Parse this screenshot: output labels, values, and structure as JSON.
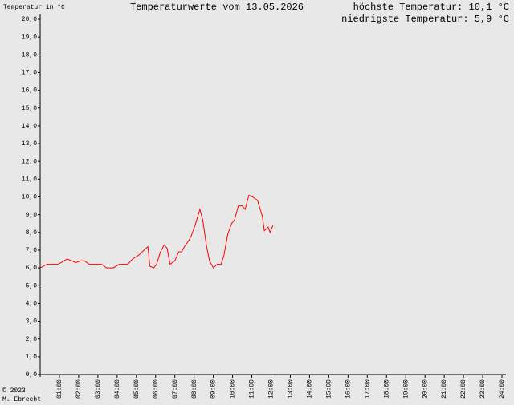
{
  "chart_data": {
    "type": "line",
    "title": "Temperaturwerte vom 13.05.2026",
    "y_label": "Temperatur in °C",
    "annotations": [
      "höchste Temperatur: 10,1 °C",
      "niedrigste Temperatur: 5,9 °C",
      "© 2023",
      "M. Ebrecht"
    ],
    "xlim": [
      0,
      24
    ],
    "ylim": [
      0,
      20
    ],
    "xticks": [
      {
        "value": 1,
        "label": "01:00"
      },
      {
        "value": 2,
        "label": "02:00"
      },
      {
        "value": 3,
        "label": "03:00"
      },
      {
        "value": 4,
        "label": "04:00"
      },
      {
        "value": 5,
        "label": "05:00"
      },
      {
        "value": 6,
        "label": "06:00"
      },
      {
        "value": 7,
        "label": "07:00"
      },
      {
        "value": 8,
        "label": "08:00"
      },
      {
        "value": 9,
        "label": "09:00"
      },
      {
        "value": 10,
        "label": "10:00"
      },
      {
        "value": 11,
        "label": "11:00"
      },
      {
        "value": 12,
        "label": "12:00"
      },
      {
        "value": 13,
        "label": "13:00"
      },
      {
        "value": 14,
        "label": "14:00"
      },
      {
        "value": 15,
        "label": "15:00"
      },
      {
        "value": 16,
        "label": "16:00"
      },
      {
        "value": 17,
        "label": "17:00"
      },
      {
        "value": 18,
        "label": "18:00"
      },
      {
        "value": 19,
        "label": "19:00"
      },
      {
        "value": 20,
        "label": "20:00"
      },
      {
        "value": 21,
        "label": "21:00"
      },
      {
        "value": 22,
        "label": "22:00"
      },
      {
        "value": 23,
        "label": "23:00"
      },
      {
        "value": 24,
        "label": "24:00"
      }
    ],
    "yticks": [
      {
        "value": 0,
        "label": "0,0"
      },
      {
        "value": 1,
        "label": "1,0"
      },
      {
        "value": 2,
        "label": "2,0"
      },
      {
        "value": 3,
        "label": "3,0"
      },
      {
        "value": 4,
        "label": "4,0"
      },
      {
        "value": 5,
        "label": "5,0"
      },
      {
        "value": 6,
        "label": "6,0"
      },
      {
        "value": 7,
        "label": "7,0"
      },
      {
        "value": 8,
        "label": "8,0"
      },
      {
        "value": 9,
        "label": "9,0"
      },
      {
        "value": 10,
        "label": "10,0"
      },
      {
        "value": 11,
        "label": "11,0"
      },
      {
        "value": 12,
        "label": "12,0"
      },
      {
        "value": 13,
        "label": "13,0"
      },
      {
        "value": 14,
        "label": "14,0"
      },
      {
        "value": 15,
        "label": "15,0"
      },
      {
        "value": 16,
        "label": "16,0"
      },
      {
        "value": 17,
        "label": "17,0"
      },
      {
        "value": 18,
        "label": "18,0"
      },
      {
        "value": 19,
        "label": "19,0"
      },
      {
        "value": 20,
        "label": "20,0"
      }
    ],
    "x": [
      0,
      0.35,
      0.9,
      1.1,
      1.4,
      1.65,
      1.85,
      2.1,
      2.3,
      2.55,
      3.2,
      3.45,
      3.8,
      4.1,
      4.55,
      4.8,
      5.1,
      5.6,
      5.7,
      5.9,
      6.05,
      6.25,
      6.45,
      6.6,
      6.75,
      7.0,
      7.2,
      7.35,
      7.5,
      7.7,
      7.85,
      8.05,
      8.3,
      8.45,
      8.65,
      8.8,
      9.0,
      9.2,
      9.4,
      9.55,
      9.75,
      9.95,
      10.1,
      10.3,
      10.5,
      10.65,
      10.85,
      11.05,
      11.3,
      11.55,
      11.65,
      11.85,
      11.95,
      12.1
    ],
    "series": [
      {
        "color": "#ff0000",
        "values": [
          6.0,
          6.2,
          6.2,
          6.3,
          6.5,
          6.4,
          6.3,
          6.4,
          6.4,
          6.2,
          6.2,
          6.0,
          6.0,
          6.2,
          6.2,
          6.5,
          6.7,
          7.2,
          6.1,
          6.0,
          6.2,
          6.9,
          7.3,
          7.1,
          6.2,
          6.4,
          6.9,
          6.9,
          7.2,
          7.5,
          7.8,
          8.4,
          9.3,
          8.7,
          7.2,
          6.4,
          6.0,
          6.2,
          6.2,
          6.7,
          7.9,
          8.5,
          8.7,
          9.5,
          9.5,
          9.3,
          10.1,
          10.0,
          9.8,
          8.9,
          8.1,
          8.3,
          8.0,
          8.4
        ]
      }
    ]
  }
}
